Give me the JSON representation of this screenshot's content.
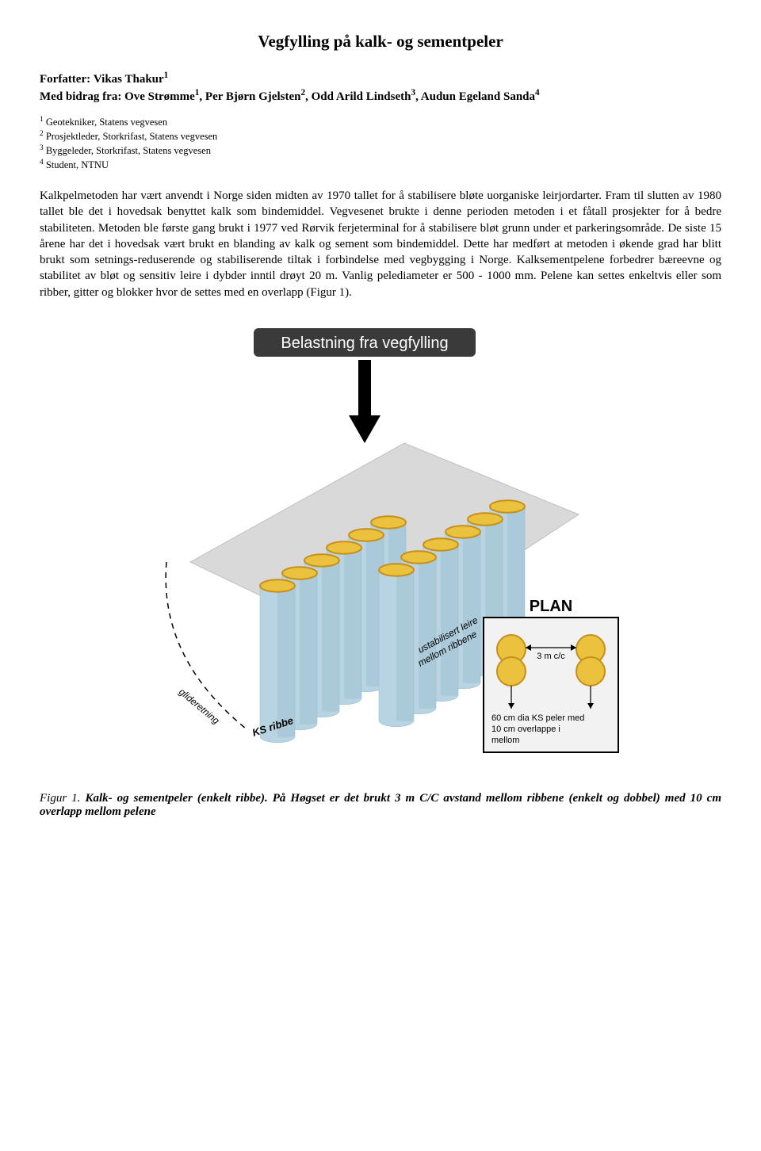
{
  "title": "Vegfylling på kalk- og sementpeler",
  "authors": {
    "forfatter_label": "Forfatter:",
    "forfatter_name": "Vikas Thakur",
    "forfatter_sup": "1",
    "bidrag_label": "Med bidrag fra:",
    "bidrag_names": "Ove Strømme",
    "bidrag_sup1": "1",
    "bidrag_sep1": ", Per Bjørn Gjelsten",
    "bidrag_sup2": "2",
    "bidrag_sep2": ", Odd Arild Lindseth",
    "bidrag_sup3": "3",
    "bidrag_sep3": ", Audun Egeland Sanda",
    "bidrag_sup4": "4"
  },
  "affiliations": {
    "a1_sup": "1",
    "a1": " Geotekniker, Statens vegvesen",
    "a2_sup": "2",
    "a2": " Prosjektleder, Storkrifast, Statens vegvesen",
    "a3_sup": "3",
    "a3": " Byggeleder, Storkrifast, Statens vegvesen",
    "a4_sup": "4",
    "a4": " Student, NTNU"
  },
  "body": "Kalkpelmetoden har vært anvendt i Norge siden midten av 1970 tallet for å stabilisere bløte uorganiske leirjordarter. Fram til slutten av 1980 tallet ble det i hovedsak benyttet kalk som bindemiddel. Vegvesenet brukte i denne perioden metoden i et fåtall prosjekter for å bedre stabiliteten. Metoden ble første gang brukt i 1977 ved Rørvik ferjeterminal for å stabilisere bløt grunn under et parkeringsområde. De siste 15 årene har det i hovedsak vært brukt en blanding av kalk og sement som bindemiddel. Dette har medført at metoden i økende grad har blitt brukt som setnings-reduserende og stabiliserende tiltak i forbindelse med vegbygging i Norge. Kalksementpelene forbedrer bæreevne og stabilitet av bløt og sensitiv leire i dybder inntil drøyt 20 m. Vanlig pelediameter er 500 - 1000 mm. Pelene kan settes enkeltvis eller som ribber, gitter og blokker hvor de settes med en overlapp (Figur 1).",
  "figure": {
    "banner_text": "Belastning fra vegfylling",
    "ks_label": "KS ribbe",
    "glide_label": "glideretning",
    "ustab_label": "ustabilisert leire mellom ribbene",
    "plan_title": "PLAN",
    "plan_spacing": "3 m c/c",
    "plan_caption": "60 cm dia KS peler med 10 cm overlappe i mellom",
    "colors": {
      "banner_bg": "#3a3a3a",
      "banner_text": "#ffffff",
      "arrow": "#000000",
      "ground_fill": "#d9d9d9",
      "ground_stroke": "#bfbfbf",
      "cyl_side1": "#b8d4e3",
      "cyl_side2": "#9cbfd1",
      "cyl_top_fill": "#eac23e",
      "cyl_top_stroke": "#c78f1a",
      "plan_border": "#000000",
      "plan_bg": "#f2f2f2",
      "plan_circle_fill": "#eac23e",
      "plan_circle_stroke": "#c78f1a",
      "plan_arrow": "#000000",
      "dash": "#000000"
    }
  },
  "caption": {
    "label": "Figur 1. ",
    "text": "Kalk- og sementpeler (enkelt ribbe). På Høgset er det brukt 3 m C/C avstand mellom ribbene (enkelt og dobbel) med 10 cm  overlapp  mellom pelene"
  }
}
